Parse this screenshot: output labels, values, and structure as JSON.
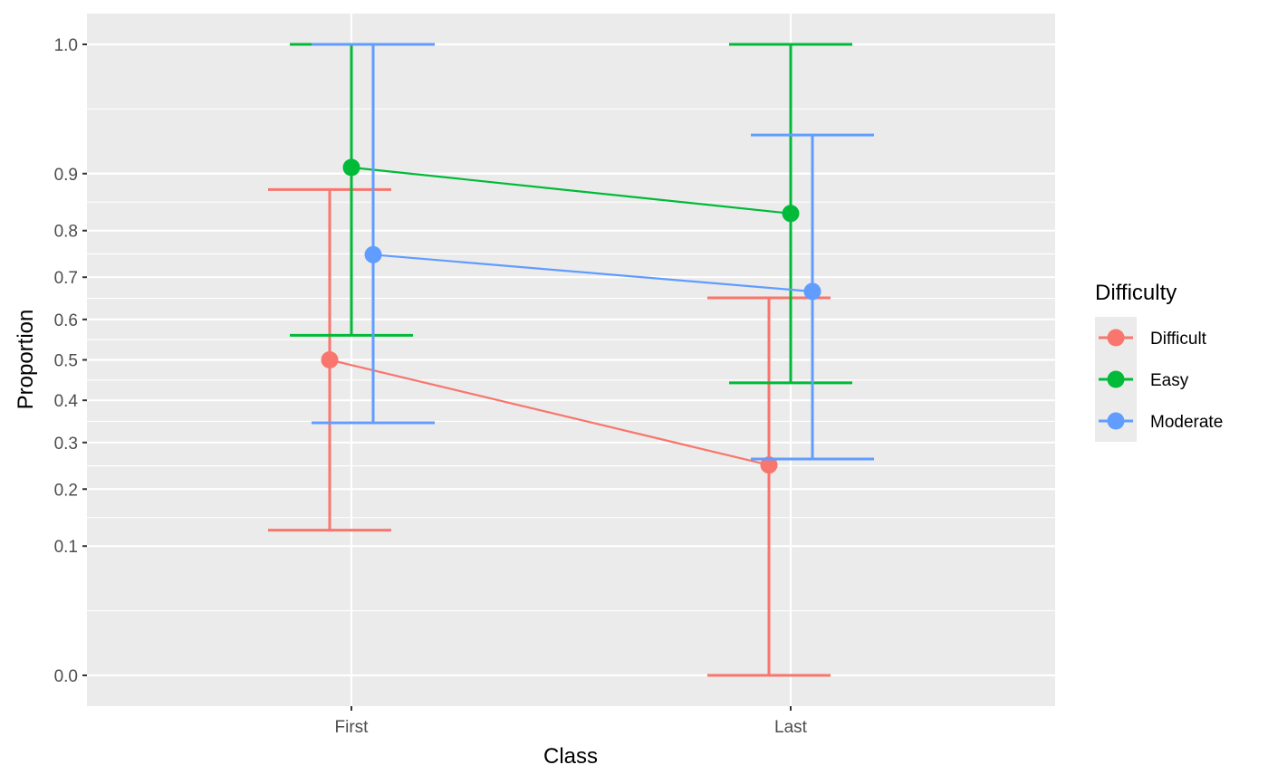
{
  "chart_data": {
    "type": "line",
    "xlabel": "Class",
    "ylabel": "Proportion",
    "categories": [
      "First",
      "Last"
    ],
    "y_tick_labels": [
      "0.0",
      "0.1",
      "0.2",
      "0.3",
      "0.4",
      "0.5",
      "0.6",
      "0.7",
      "0.8",
      "0.9",
      "1.0"
    ],
    "y_scale": "arcsine-sqrt",
    "ylim": [
      0,
      1
    ],
    "grid": true,
    "legend": {
      "title": "Difficulty",
      "position": "right"
    },
    "series": [
      {
        "name": "Difficult",
        "color": "#F8766D",
        "values": [
          0.5,
          0.25
        ],
        "lower": [
          0.125,
          0.0
        ],
        "upper": [
          0.875,
          0.652
        ]
      },
      {
        "name": "Easy",
        "color": "#00BA38",
        "values": [
          0.909,
          0.833
        ],
        "lower": [
          0.561,
          0.443
        ],
        "upper": [
          1.0,
          1.0
        ]
      },
      {
        "name": "Moderate",
        "color": "#619CFF",
        "values": [
          0.75,
          0.667
        ],
        "lower": [
          0.346,
          0.263
        ],
        "upper": [
          1.0,
          0.95
        ]
      }
    ]
  }
}
